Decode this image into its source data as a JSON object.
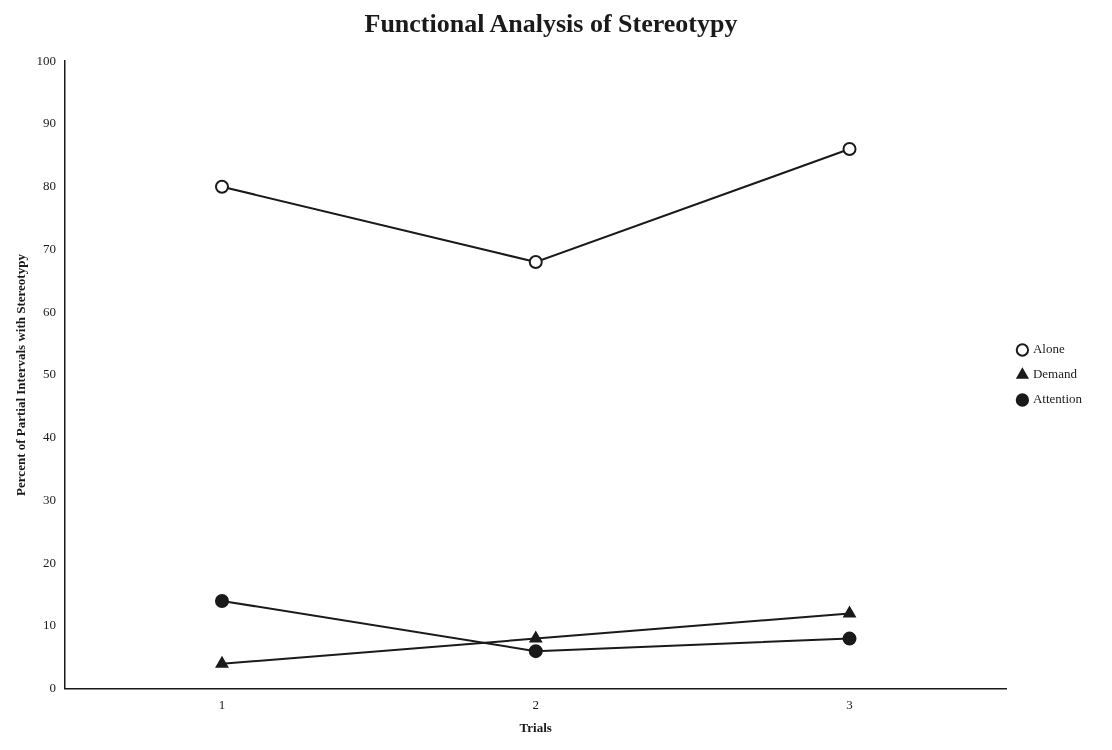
{
  "chart_data": {
    "type": "line",
    "title": "Functional Analysis of Stereotypy",
    "xlabel": "Trials",
    "ylabel": "Percent of Partial Intervals with Stereotypy",
    "categories": [
      "1",
      "2",
      "3"
    ],
    "series": [
      {
        "name": "Alone",
        "color": "#1a1a1a",
        "marker": "circle",
        "values": [
          80,
          68,
          86
        ]
      },
      {
        "name": "Demand",
        "color": "#1a1a1a",
        "marker": "triangle",
        "values": [
          4,
          8,
          12
        ]
      },
      {
        "name": "Attention",
        "color": "#1a1a1a",
        "marker": "circle",
        "values": [
          14,
          6,
          8
        ]
      }
    ],
    "ylim": [
      0,
      100
    ],
    "yticks": [
      0,
      10,
      20,
      30,
      40,
      50,
      60,
      70,
      80,
      90,
      100
    ],
    "grid": false,
    "legend": "right",
    "line_style": "solid"
  }
}
